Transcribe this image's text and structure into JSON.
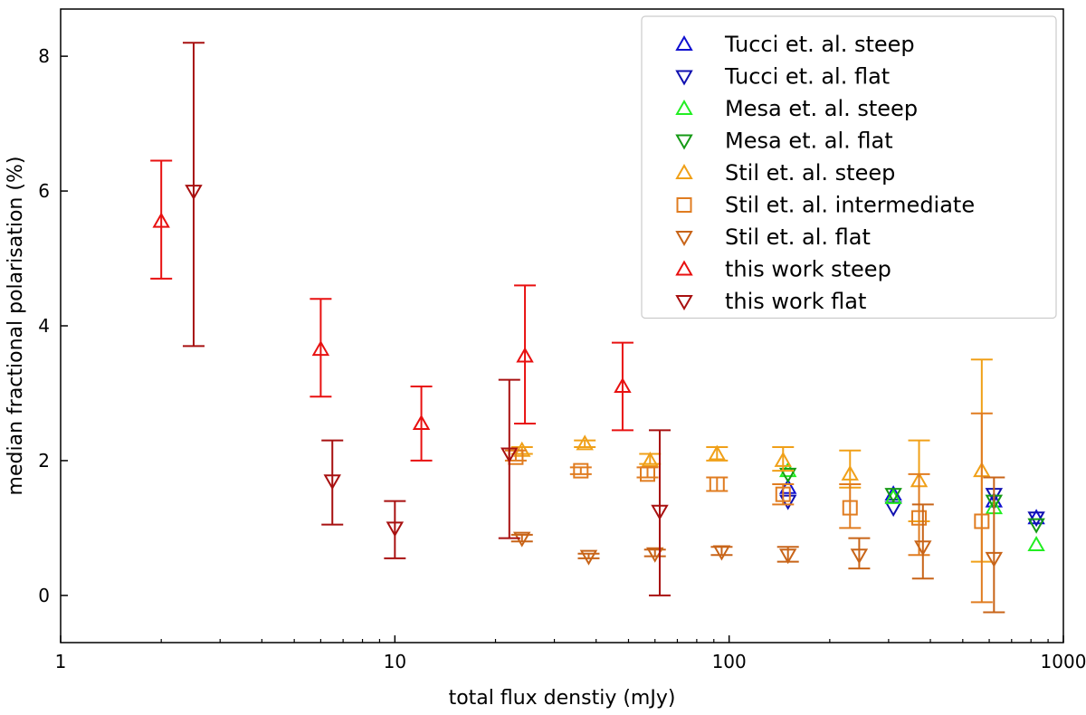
{
  "chart_data": {
    "type": "scatter",
    "title": "",
    "xlabel": "total flux denstiy (mJy)",
    "ylabel": "median fractional polarisation (%)",
    "xscale": "log",
    "xlim": [
      1,
      1000
    ],
    "ylim": [
      -0.7,
      8.7
    ],
    "xticks": [
      {
        "value": 1,
        "label": "1"
      },
      {
        "value": 10,
        "label": "10"
      },
      {
        "value": 100,
        "label": "100"
      },
      {
        "value": 1000,
        "label": "1000"
      }
    ],
    "yticks": [
      {
        "value": 0,
        "label": "0"
      },
      {
        "value": 2,
        "label": "2"
      },
      {
        "value": 4,
        "label": "4"
      },
      {
        "value": 6,
        "label": "6"
      },
      {
        "value": 8,
        "label": "8"
      }
    ],
    "legend_position": "top-right",
    "series": [
      {
        "name": "Tucci et. al. steep",
        "marker": "triangle-up",
        "color": "#1010d0",
        "points": [
          {
            "x": 150,
            "y": 1.6
          },
          {
            "x": 310,
            "y": 1.5
          },
          {
            "x": 620,
            "y": 1.4
          },
          {
            "x": 830,
            "y": 1.15
          }
        ]
      },
      {
        "name": "Tucci et. al. flat",
        "marker": "triangle-down",
        "color": "#1010b0",
        "points": [
          {
            "x": 150,
            "y": 1.4
          },
          {
            "x": 310,
            "y": 1.3
          },
          {
            "x": 620,
            "y": 1.5
          },
          {
            "x": 830,
            "y": 1.15
          }
        ]
      },
      {
        "name": "Mesa et. al. steep",
        "marker": "triangle-up",
        "color": "#22ee22",
        "points": [
          {
            "x": 150,
            "y": 1.85
          },
          {
            "x": 310,
            "y": 1.45
          },
          {
            "x": 620,
            "y": 1.3
          },
          {
            "x": 830,
            "y": 0.75
          }
        ]
      },
      {
        "name": "Mesa et. al. flat",
        "marker": "triangle-down",
        "color": "#159a15",
        "points": [
          {
            "x": 150,
            "y": 1.8
          },
          {
            "x": 310,
            "y": 1.5
          },
          {
            "x": 620,
            "y": 1.4
          },
          {
            "x": 830,
            "y": 1.05
          }
        ]
      },
      {
        "name": "Stil et. al. steep",
        "marker": "triangle-up",
        "color": "#f0a018",
        "points": [
          {
            "x": 24,
            "y": 2.15,
            "lo": 2.1,
            "hi": 2.2
          },
          {
            "x": 37,
            "y": 2.25,
            "lo": 2.2,
            "hi": 2.3
          },
          {
            "x": 58,
            "y": 2.0,
            "lo": 1.95,
            "hi": 2.1
          },
          {
            "x": 92,
            "y": 2.1,
            "lo": 2.0,
            "hi": 2.2
          },
          {
            "x": 145,
            "y": 2.0,
            "lo": 1.85,
            "hi": 2.2
          },
          {
            "x": 230,
            "y": 1.8,
            "lo": 1.6,
            "hi": 2.15
          },
          {
            "x": 370,
            "y": 1.7,
            "lo": 1.1,
            "hi": 2.3
          },
          {
            "x": 570,
            "y": 1.85,
            "lo": 0.5,
            "hi": 3.5
          }
        ]
      },
      {
        "name": "Stil et. al. intermediate",
        "marker": "square",
        "color": "#e07c20",
        "points": [
          {
            "x": 23,
            "y": 2.05,
            "lo": 2.0,
            "hi": 2.15
          },
          {
            "x": 36,
            "y": 1.85,
            "lo": 1.8,
            "hi": 1.9
          },
          {
            "x": 57,
            "y": 1.8,
            "lo": 1.75,
            "hi": 1.9
          },
          {
            "x": 92,
            "y": 1.65,
            "lo": 1.55,
            "hi": 1.75
          },
          {
            "x": 145,
            "y": 1.5,
            "lo": 1.35,
            "hi": 1.65
          },
          {
            "x": 230,
            "y": 1.3,
            "lo": 1.0,
            "hi": 1.65
          },
          {
            "x": 370,
            "y": 1.15,
            "lo": 0.6,
            "hi": 1.8
          },
          {
            "x": 570,
            "y": 1.1,
            "lo": -0.1,
            "hi": 2.7
          }
        ]
      },
      {
        "name": "Stil et. al. flat",
        "marker": "triangle-down",
        "color": "#c86418",
        "points": [
          {
            "x": 24,
            "y": 0.85,
            "lo": 0.8,
            "hi": 0.9
          },
          {
            "x": 38,
            "y": 0.58,
            "lo": 0.55,
            "hi": 0.62
          },
          {
            "x": 60,
            "y": 0.62,
            "lo": 0.58,
            "hi": 0.68
          },
          {
            "x": 95,
            "y": 0.65,
            "lo": 0.6,
            "hi": 0.72
          },
          {
            "x": 150,
            "y": 0.6,
            "lo": 0.5,
            "hi": 0.72
          },
          {
            "x": 245,
            "y": 0.6,
            "lo": 0.4,
            "hi": 0.85
          },
          {
            "x": 380,
            "y": 0.72,
            "lo": 0.25,
            "hi": 1.35
          },
          {
            "x": 620,
            "y": 0.55,
            "lo": -0.25,
            "hi": 1.75
          }
        ]
      },
      {
        "name": "this work steep",
        "marker": "triangle-up",
        "color": "#e81010",
        "points": [
          {
            "x": 2.0,
            "y": 5.55,
            "lo": 4.7,
            "hi": 6.45
          },
          {
            "x": 6.0,
            "y": 3.65,
            "lo": 2.95,
            "hi": 4.4
          },
          {
            "x": 12.0,
            "y": 2.55,
            "lo": 2.0,
            "hi": 3.1
          },
          {
            "x": 24.5,
            "y": 3.55,
            "lo": 2.55,
            "hi": 4.6
          },
          {
            "x": 48,
            "y": 3.1,
            "lo": 2.45,
            "hi": 3.75
          }
        ]
      },
      {
        "name": "this work flat",
        "marker": "triangle-down",
        "color": "#a81010",
        "points": [
          {
            "x": 2.5,
            "y": 6.0,
            "lo": 3.7,
            "hi": 8.2
          },
          {
            "x": 6.5,
            "y": 1.7,
            "lo": 1.05,
            "hi": 2.3
          },
          {
            "x": 10.0,
            "y": 1.0,
            "lo": 0.55,
            "hi": 1.4
          },
          {
            "x": 22.0,
            "y": 2.1,
            "lo": 0.85,
            "hi": 3.2
          },
          {
            "x": 62,
            "y": 1.25,
            "lo": 0.0,
            "hi": 2.45
          }
        ]
      }
    ]
  }
}
